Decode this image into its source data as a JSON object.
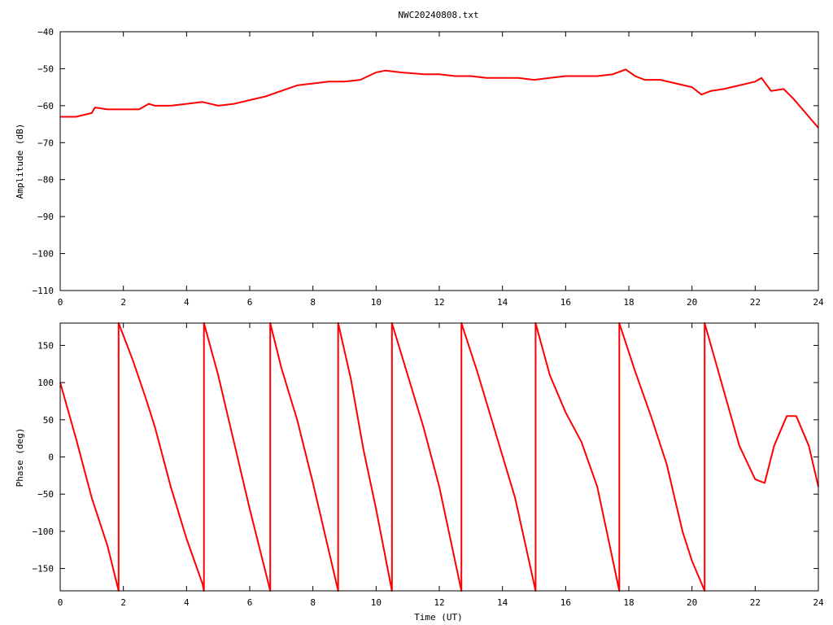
{
  "title": "NWC20240808.txt",
  "chart_data": [
    {
      "type": "line",
      "ylabel": "Amplitude (dB)",
      "xlabel": "",
      "xlim": [
        0,
        24
      ],
      "ylim": [
        -110,
        -40
      ],
      "x_ticks": [
        0,
        2,
        4,
        6,
        8,
        10,
        12,
        14,
        16,
        18,
        20,
        22,
        24
      ],
      "y_ticks": [
        -40,
        -50,
        -60,
        -70,
        -80,
        -90,
        -100,
        -110
      ],
      "grid": false,
      "series": [
        {
          "color": "#ff0000",
          "x": [
            0,
            0.5,
            1.0,
            1.1,
            1.5,
            2.0,
            2.5,
            2.8,
            3.0,
            3.5,
            4.0,
            4.5,
            5.0,
            5.5,
            6.0,
            6.5,
            7.0,
            7.5,
            8.0,
            8.5,
            9.0,
            9.5,
            10.0,
            10.3,
            10.8,
            11.5,
            12.0,
            12.5,
            13.0,
            13.5,
            14.0,
            14.5,
            15.0,
            15.5,
            16.0,
            16.5,
            17.0,
            17.5,
            17.9,
            18.2,
            18.5,
            19.0,
            19.5,
            20.0,
            20.3,
            20.6,
            21.0,
            21.5,
            22.0,
            22.2,
            22.5,
            22.9,
            23.2,
            23.5,
            24.0
          ],
          "y": [
            -63,
            -63,
            -62,
            -60.5,
            -61,
            -61,
            -61,
            -59.5,
            -60,
            -60,
            -59.5,
            -59,
            -60,
            -59.5,
            -58.5,
            -57.5,
            -56,
            -54.5,
            -54,
            -53.5,
            -53.5,
            -53,
            -51,
            -50.5,
            -51,
            -51.5,
            -51.5,
            -52,
            -52,
            -52.5,
            -52.5,
            -52.5,
            -53,
            -52.5,
            -52,
            -52,
            -52,
            -51.5,
            -50.2,
            -52,
            -53,
            -53,
            -54,
            -55,
            -57,
            -56,
            -55.5,
            -54.5,
            -53.5,
            -52.5,
            -56,
            -55.5,
            -58,
            -61,
            -66
          ]
        }
      ]
    },
    {
      "type": "line",
      "ylabel": "Phase (deg)",
      "xlabel": "Time (UT)",
      "xlim": [
        0,
        24
      ],
      "ylim": [
        -180,
        180
      ],
      "x_ticks": [
        0,
        2,
        4,
        6,
        8,
        10,
        12,
        14,
        16,
        18,
        20,
        22,
        24
      ],
      "y_ticks": [
        150,
        100,
        50,
        0,
        -50,
        -100,
        -150
      ],
      "grid": false,
      "series": [
        {
          "color": "#ff0000",
          "x": [
            0,
            0.5,
            1.0,
            1.5,
            1.85,
            1.85,
            2.3,
            2.7,
            3.0,
            3.5,
            4.0,
            4.5,
            4.55,
            4.55,
            5.0,
            5.5,
            6.0,
            6.65,
            6.65,
            7.0,
            7.5,
            8.0,
            8.8,
            8.8,
            9.2,
            9.6,
            10.0,
            10.5,
            10.5,
            11.0,
            11.5,
            12.0,
            12.7,
            12.7,
            13.2,
            13.8,
            14.4,
            15.05,
            15.05,
            15.5,
            16.0,
            16.5,
            17.0,
            17.7,
            17.7,
            18.2,
            18.7,
            19.2,
            19.7,
            20.0,
            20.4,
            20.4,
            20.9,
            21.5,
            22.0,
            22.3,
            22.6,
            23.0,
            23.3,
            23.7,
            24.0
          ],
          "y": [
            100,
            25,
            -55,
            -120,
            -180,
            180,
            130,
            80,
            40,
            -40,
            -110,
            -170,
            -180,
            180,
            110,
            20,
            -70,
            -180,
            180,
            120,
            50,
            -35,
            -180,
            180,
            105,
            10,
            -70,
            -180,
            180,
            110,
            40,
            -40,
            -180,
            180,
            115,
            30,
            -55,
            -180,
            180,
            110,
            60,
            20,
            -40,
            -180,
            180,
            115,
            55,
            -10,
            -100,
            -140,
            -180,
            180,
            105,
            15,
            -30,
            -35,
            15,
            55,
            55,
            15,
            -40
          ]
        }
      ]
    }
  ]
}
